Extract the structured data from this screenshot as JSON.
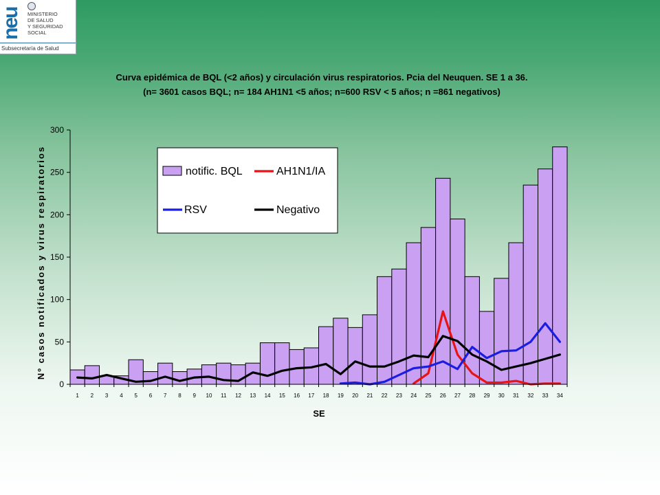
{
  "logo": {
    "mark_text": "neu",
    "lines": [
      "MINISTERIO",
      "DE SALUD",
      "Y SEGURIDAD",
      "SOCIAL"
    ],
    "subtitle": "Subsecretaría de Salud"
  },
  "chart_data": {
    "type": "bar",
    "title": "Curva epidémica de BQL (<2 años) y circulación virus respiratorios. Pcia del Neuquen. SE 1 a 36.",
    "subtitle": "(n= 3601 casos BQL; n= 184 AH1N1 <5 años; n=600 RSV < 5 años; n =861 negativos)",
    "xlabel": "SE",
    "ylabel": "Nº casos notificados y virus respiratorios",
    "ylim": [
      0,
      300
    ],
    "yticks": [
      0,
      50,
      100,
      150,
      200,
      250,
      300
    ],
    "categories": [
      "1",
      "2",
      "3",
      "4",
      "5",
      "6",
      "7",
      "8",
      "9",
      "10",
      "11",
      "12",
      "13",
      "14",
      "15",
      "16",
      "17",
      "18",
      "19",
      "20",
      "21",
      "22",
      "23",
      "24",
      "25",
      "26",
      "27",
      "28",
      "29",
      "30",
      "31",
      "32",
      "33",
      "34"
    ],
    "grid": false,
    "legend_position": "top-left",
    "bar_series": {
      "name": "notific. BQL",
      "color": "#c9a0f2",
      "values": [
        17,
        22,
        10,
        10,
        29,
        15,
        25,
        15,
        18,
        23,
        25,
        23,
        25,
        49,
        49,
        41,
        43,
        68,
        78,
        67,
        82,
        127,
        136,
        167,
        185,
        243,
        195,
        127,
        86,
        125,
        167,
        235,
        254,
        280
      ]
    },
    "line_series": [
      {
        "name": "AH1N1/IA",
        "color": "#e81414",
        "values": [
          null,
          null,
          null,
          null,
          null,
          null,
          null,
          null,
          null,
          null,
          null,
          null,
          null,
          null,
          null,
          null,
          null,
          null,
          null,
          null,
          null,
          null,
          null,
          1,
          13,
          86,
          35,
          13,
          2,
          2,
          4,
          0,
          1,
          1
        ]
      },
      {
        "name": "RSV",
        "color": "#1b1ee0",
        "values": [
          null,
          null,
          null,
          null,
          null,
          null,
          null,
          null,
          null,
          null,
          null,
          null,
          null,
          null,
          null,
          null,
          null,
          null,
          1,
          2,
          0,
          3,
          11,
          19,
          21,
          27,
          18,
          44,
          31,
          39,
          40,
          50,
          72,
          50
        ]
      },
      {
        "name": "Negativo",
        "color": "#000000",
        "values": [
          8,
          7,
          11,
          7,
          3,
          4,
          9,
          4,
          8,
          9,
          5,
          4,
          14,
          10,
          16,
          19,
          20,
          24,
          12,
          27,
          21,
          21,
          27,
          34,
          32,
          57,
          51,
          35,
          27,
          17,
          21,
          25,
          30,
          35
        ]
      }
    ]
  }
}
